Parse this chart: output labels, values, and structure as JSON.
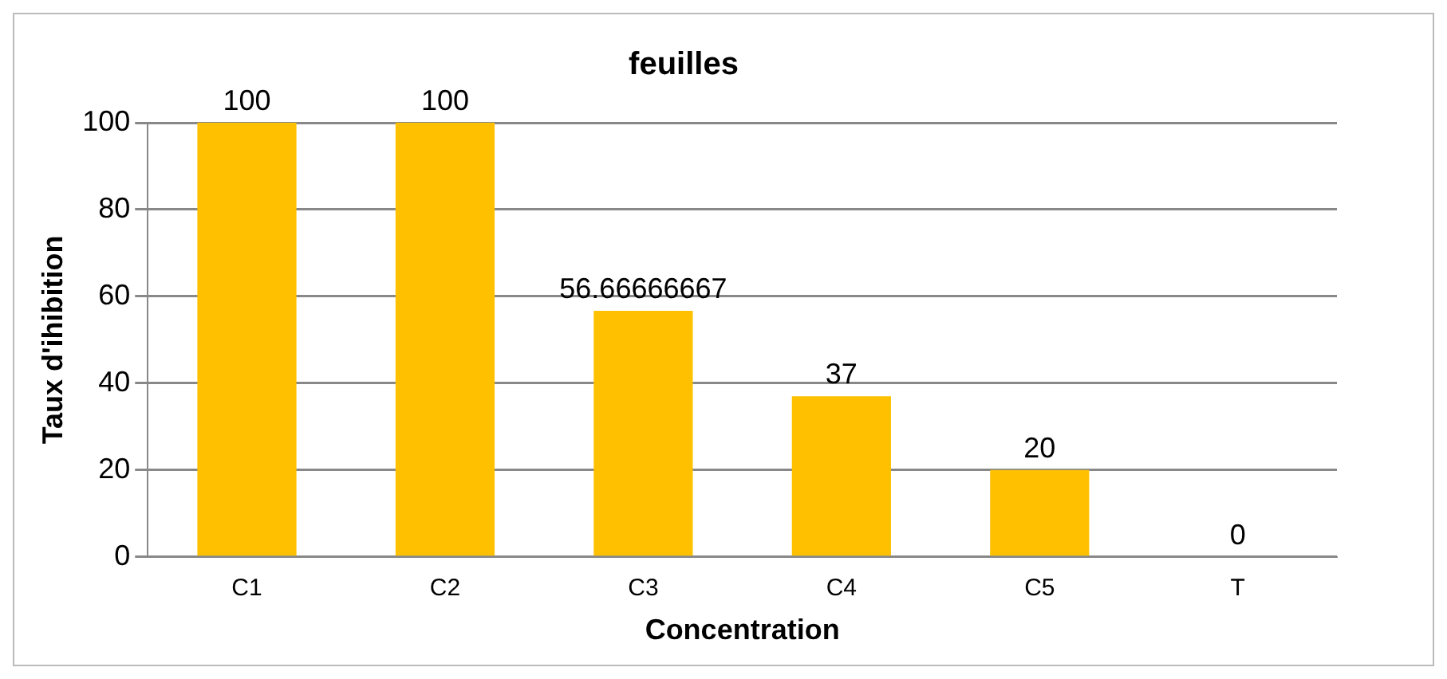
{
  "chart_data": {
    "type": "bar",
    "title": "feuilles",
    "xlabel": "Concentration",
    "ylabel": "Taux d'ihibition",
    "categories": [
      "C1",
      "C2",
      "C3",
      "C4",
      "C5",
      "T"
    ],
    "values": [
      100,
      100,
      56.66666667,
      37,
      20,
      0
    ],
    "color": "#ffc000",
    "ylim": [
      0,
      100
    ],
    "yticks": [
      0,
      20,
      40,
      60,
      80,
      100
    ],
    "grid": "y",
    "data_labels": true,
    "legend": false
  }
}
